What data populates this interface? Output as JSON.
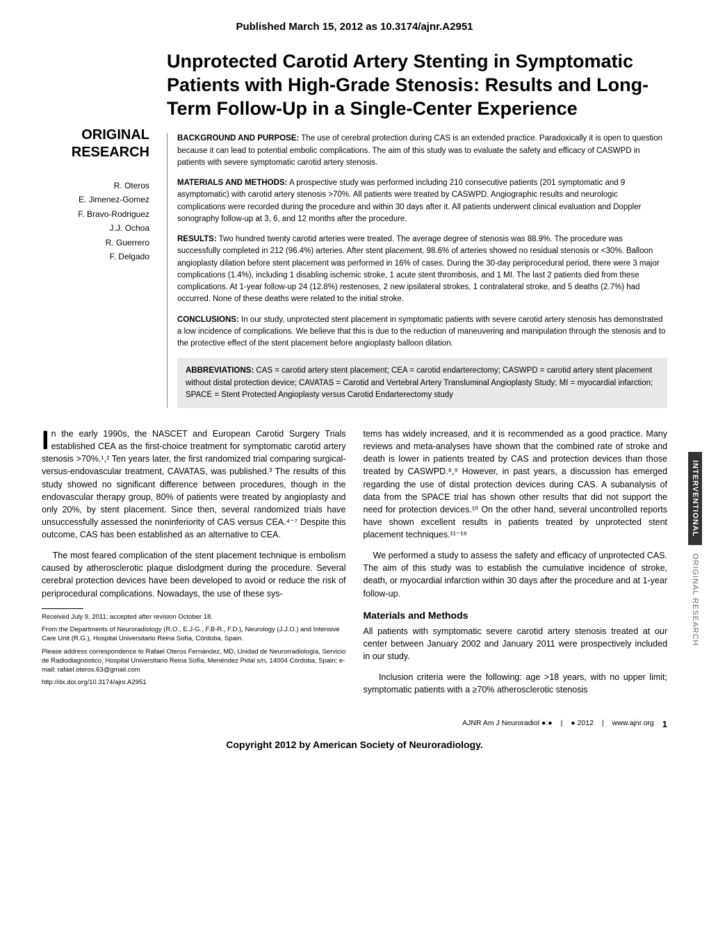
{
  "doi_line": "Published March 15, 2012 as 10.3174/ajnr.A2951",
  "section_label_1": "ORIGINAL",
  "section_label_2": "RESEARCH",
  "authors": [
    "R. Oteros",
    "E. Jimenez-Gomez",
    "F. Bravo-Rodriguez",
    "J.J. Ochoa",
    "R. Guerrero",
    "F. Delgado"
  ],
  "title": "Unprotected Carotid Artery Stenting in Symptomatic Patients with High-Grade Stenosis: Results and Long-Term Follow-Up in a Single-Center Experience",
  "abstract": {
    "bg_label": "BACKGROUND AND PURPOSE:",
    "bg_text": " The use of cerebral protection during CAS is an extended practice. Paradoxically it is open to question because it can lead to potential embolic complications. The aim of this study was to evaluate the safety and efficacy of CASWPD in patients with severe symptomatic carotid artery stenosis.",
    "mm_label": "MATERIALS AND METHODS:",
    "mm_text": " A prospective study was performed including 210 consecutive patients (201 symptomatic and 9 asymptomatic) with carotid artery stenosis >70%. All patients were treated by CASWPD. Angiographic results and neurologic complications were recorded during the procedure and within 30 days after it. All patients underwent clinical evaluation and Doppler sonography follow-up at 3, 6, and 12 months after the procedure.",
    "res_label": "RESULTS:",
    "res_text": " Two hundred twenty carotid arteries were treated. The average degree of stenosis was 88.9%. The procedure was successfully completed in 212 (96.4%) arteries. After stent placement, 98.6% of arteries showed no residual stenosis or <30%. Balloon angioplasty dilation before stent placement was performed in 16% of cases. During the 30-day periprocedural period, there were 3 major complications (1.4%), including 1 disabling ischemic stroke, 1 acute stent thrombosis, and 1 MI. The last 2 patients died from these complications. At 1-year follow-up 24 (12.8%) restenoses, 2 new ipsilateral strokes, 1 contralateral stroke, and 5 deaths (2.7%) had occurred. None of these deaths were related to the initial stroke.",
    "con_label": "CONCLUSIONS:",
    "con_text": " In our study, unprotected stent placement in symptomatic patients with severe carotid artery stenosis has demonstrated a low incidence of complications. We believe that this is due to the reduction of maneuvering and manipulation through the stenosis and to the protective effect of the stent placement before angioplasty balloon dilation."
  },
  "abbrev": {
    "label": "ABBREVIATIONS:",
    "text": " CAS = carotid artery stent placement; CEA = carotid endarterectomy; CASWPD = carotid artery stent placement without distal protection device; CAVATAS = Carotid and Vertebral Artery Transluminal Angioplasty Study; MI = myocardial infarction; SPACE = Stent Protected Angioplasty versus Carotid Endarterectomy study"
  },
  "body": {
    "p1_first": "I",
    "p1": "n the early 1990s, the NASCET and European Carotid Surgery Trials established CEA as the first-choice treatment for symptomatic carotid artery stenosis >70%.¹,² Ten years later, the first randomized trial comparing surgical-versus-endovascular treatment, CAVATAS, was published.³ The results of this study showed no significant difference between procedures, though in the endovascular therapy group, 80% of patients were treated by angioplasty and only 20%, by stent placement. Since then, several randomized trials have unsuccessfully assessed the noninferiority of CAS versus CEA.⁴⁻⁷ Despite this outcome, CAS has been established as an alternative to CEA.",
    "p2": "The most feared complication of the stent placement technique is embolism caused by atherosclerotic plaque dislodgment during the procedure. Several cerebral protection devices have been developed to avoid or reduce the risk of periprocedural complications. Nowadays, the use of these sys-",
    "p3": "tems has widely increased, and it is recommended as a good practice. Many reviews and meta-analyses have shown that the combined rate of stroke and death is lower in patients treated by CAS and protection devices than those treated by CASWPD.⁸,⁹ However, in past years, a discussion has emerged regarding the use of distal protection devices during CAS. A subanalysis of data from the SPACE trial has shown other results that did not support the need for protection devices.¹⁰ On the other hand, several uncontrolled reports have shown excellent results in patients treated by unprotected stent placement techniques.¹¹⁻¹⁵",
    "p4": "We performed a study to assess the safety and efficacy of unprotected CAS. The aim of this study was to establish the cumulative incidence of stroke, death, or myocardial infarction within 30 days after the procedure and at 1-year follow-up.",
    "mm_heading": "Materials and Methods",
    "p5": "All patients with symptomatic severe carotid artery stenosis treated at our center between January 2002 and January 2011 were prospectively included in our study.",
    "p6": "Inclusion criteria were the following: age >18 years, with no upper limit; symptomatic patients with a ≥70% atherosclerotic stenosis"
  },
  "footer_info": {
    "received": "Received July 9, 2011; accepted after revision October 18.",
    "from": "From the Departments of Neuroradiology (R.O., E.J-G., F.B-R., F.D.), Neurology (J.J.O.) and Intensive Care Unit (R.G.), Hospital Universitario Reina Sofía, Córdoba, Spain.",
    "corr": "Please address correspondence to Rafael Oteros Fernández, MD, Unidad de Neurorradiología, Servicio de Radiodiagnóstico, Hospital Universitario Reina Sofía, Menéndez Pidal s/n, 14004 Córdoba, Spain; e-mail: rafael.oteros.63@gmail.com",
    "doi": "http://dx.doi.org/10.3174/ajnr.A2951"
  },
  "side_tab": {
    "dark": "INTERVENTIONAL",
    "light": "ORIGINAL RESEARCH"
  },
  "page_footer": {
    "journal": "AJNR Am J Neuroradiol ●:●",
    "sep1": "|",
    "date": "● 2012",
    "sep2": "|",
    "url": "www.ajnr.org",
    "num": "1"
  },
  "copyright": "Copyright 2012 by American Society of Neuroradiology."
}
